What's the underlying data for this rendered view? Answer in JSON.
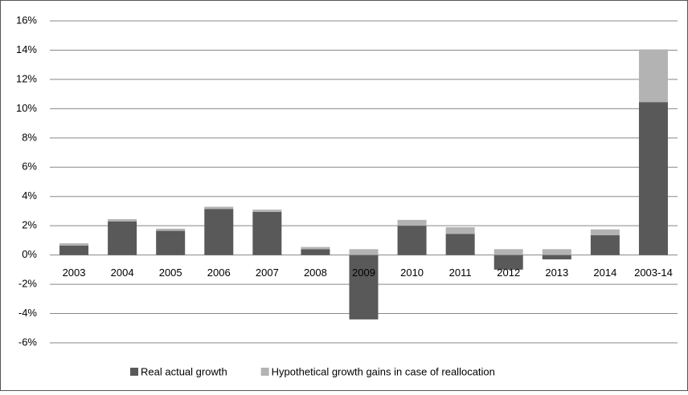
{
  "chart_data": {
    "type": "stacked-bar",
    "categories": [
      "2003",
      "2004",
      "2005",
      "2006",
      "2007",
      "2008",
      "2009",
      "2010",
      "2011",
      "2012",
      "2013",
      "2014",
      "2003-14"
    ],
    "series": [
      {
        "name": "Real actual growth",
        "color": "#595959",
        "values": [
          0.65,
          2.3,
          1.65,
          3.15,
          2.95,
          0.4,
          -4.4,
          2.0,
          1.45,
          -1.0,
          -0.3,
          1.35,
          10.45
        ]
      },
      {
        "name": "Hypothetical growth gains in case of reallocation",
        "color": "#b3b3b3",
        "values": [
          0.15,
          0.15,
          0.15,
          0.15,
          0.15,
          0.15,
          0.4,
          0.4,
          0.45,
          0.4,
          0.4,
          0.4,
          3.6
        ]
      }
    ],
    "ylim": [
      -6,
      16
    ],
    "yticks": [
      {
        "value": -6,
        "label": "-6%"
      },
      {
        "value": -4,
        "label": "-4%"
      },
      {
        "value": -2,
        "label": "-2%"
      },
      {
        "value": 0,
        "label": "0%"
      },
      {
        "value": 2,
        "label": "2%"
      },
      {
        "value": 4,
        "label": "4%"
      },
      {
        "value": 6,
        "label": "6%"
      },
      {
        "value": 8,
        "label": "8%"
      },
      {
        "value": 10,
        "label": "10%"
      },
      {
        "value": 12,
        "label": "12%"
      },
      {
        "value": 14,
        "label": "14%"
      },
      {
        "value": 16,
        "label": "16%"
      }
    ],
    "grid": true,
    "legend": "bottom"
  }
}
